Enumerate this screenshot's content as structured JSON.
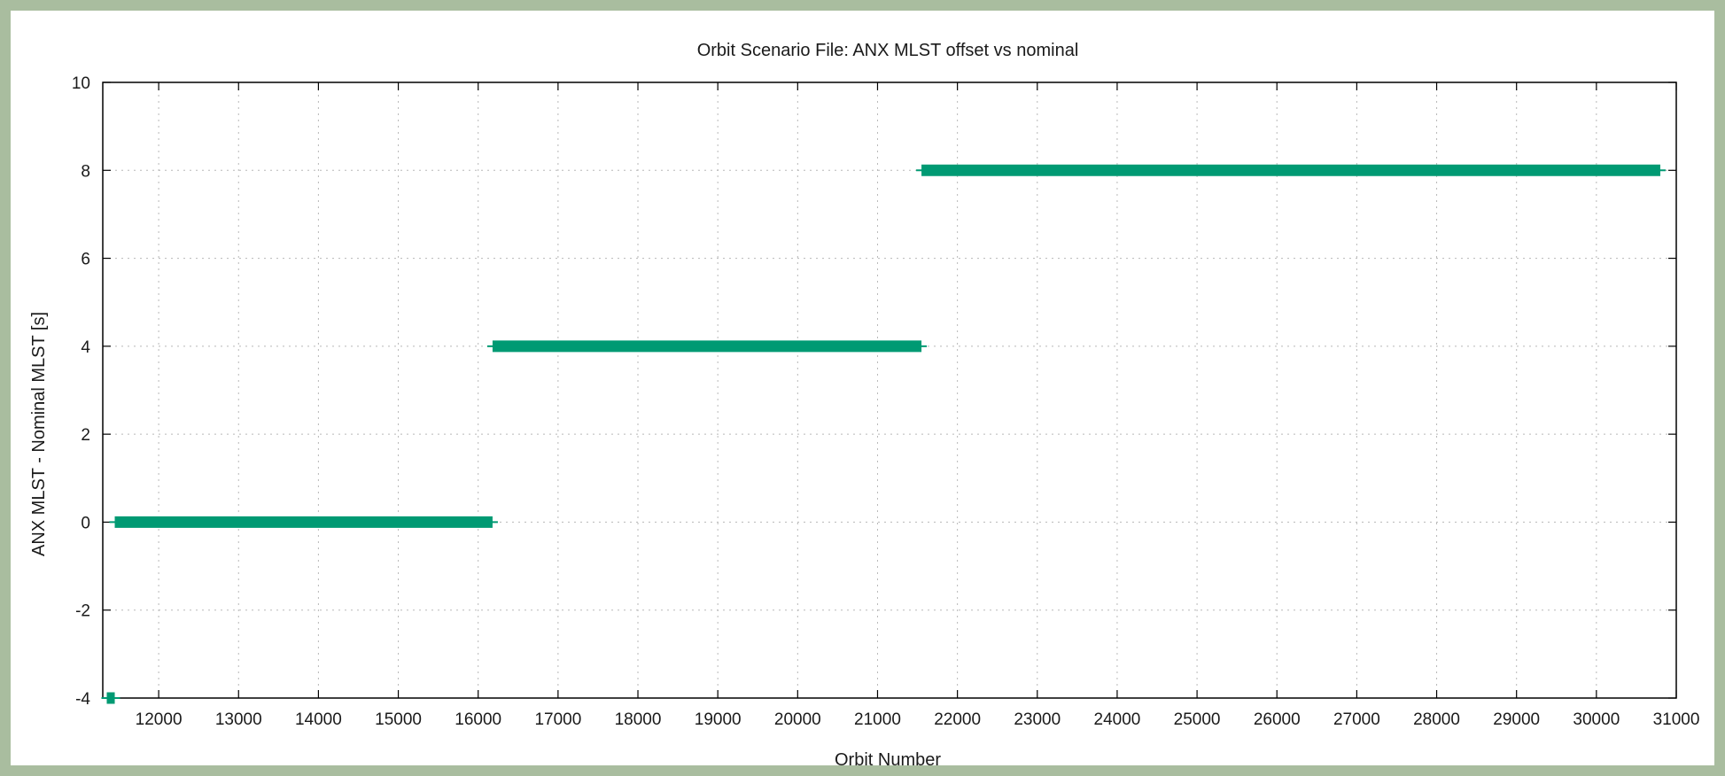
{
  "chart_data": {
    "type": "line",
    "title": "Orbit Scenario File: ANX MLST offset vs nominal",
    "xlabel": "Orbit Number",
    "ylabel": "ANX MLST - Nominal MLST [s]",
    "xlim": [
      11300,
      31000
    ],
    "ylim": [
      -4,
      10
    ],
    "xticks": [
      12000,
      13000,
      14000,
      15000,
      16000,
      17000,
      18000,
      19000,
      20000,
      21000,
      22000,
      23000,
      24000,
      25000,
      26000,
      27000,
      28000,
      29000,
      30000,
      31000
    ],
    "yticks": [
      -4,
      -2,
      0,
      2,
      4,
      6,
      8,
      10
    ],
    "grid": true,
    "legend": "none",
    "series": [
      {
        "color": "#009a73",
        "segments": [
          {
            "x": [
              11350,
              11450
            ],
            "y": [
              -4,
              -4
            ]
          },
          {
            "x": [
              11450,
              16180
            ],
            "y": [
              0,
              0
            ]
          },
          {
            "x": [
              16180,
              21550
            ],
            "y": [
              4,
              4
            ]
          },
          {
            "x": [
              21550,
              30800
            ],
            "y": [
              8,
              8
            ]
          }
        ]
      }
    ]
  }
}
